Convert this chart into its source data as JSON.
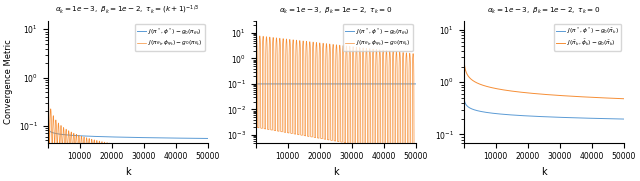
{
  "n_steps": 50000,
  "figsize": [
    6.4,
    1.81
  ],
  "dpi": 100,
  "blue_color": "#5b9bd5",
  "orange_color": "#f58220",
  "titles": [
    "$\\alpha_k = 1e-3,\\ \\beta_k = 1e-2,\\ \\tau_k = (k+1)^{-1/3}$",
    "$\\alpha_k = 1e-3,\\ \\beta_k = 1e-2,\\ \\tau_k = 0$",
    "$\\alpha_k = 1e-3,\\ \\beta_k = 1e-2,\\ \\tau_k = 0$"
  ],
  "ylabel": "Convergence Metric",
  "xlabel": "k",
  "legend1_blue": "$J(\\pi^*, \\phi^*) - g_0(\\pi_{\\theta_k})$",
  "legend1_orange": "$J(\\pi_{\\theta_k}, \\phi_{\\psi_k}) - g_0(\\pi_{\\theta_k})$",
  "legend3_blue": "$J(\\pi^*, \\phi^*) - g_0(\\bar{\\pi}_k)$",
  "legend3_orange": "$J(\\bar{\\pi}_k, \\bar{\\phi}_k) - g_0(\\bar{\\pi}_k)$",
  "ylim_panel1": [
    0.045,
    15
  ],
  "ylim_panel2": [
    0.0005,
    30
  ],
  "ylim_panel3": [
    0.07,
    15
  ],
  "xlim": [
    0,
    50000
  ]
}
